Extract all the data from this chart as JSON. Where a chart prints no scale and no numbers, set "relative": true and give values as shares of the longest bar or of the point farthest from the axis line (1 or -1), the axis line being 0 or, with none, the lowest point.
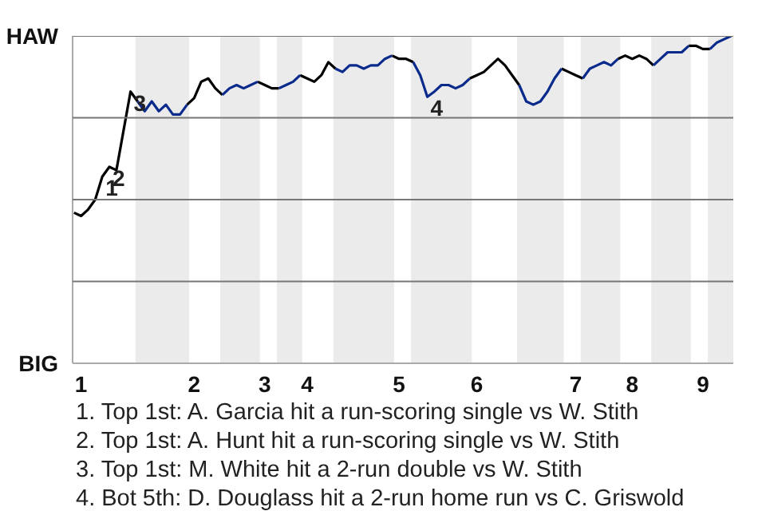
{
  "chart_data": {
    "type": "line",
    "relative": true,
    "categories": [
      null,
      "1",
      null,
      null,
      null,
      null,
      null,
      null,
      null,
      null,
      null,
      null,
      null,
      null,
      null,
      null,
      null,
      "2",
      null,
      null,
      null,
      null,
      null,
      null,
      null,
      null,
      null,
      "3",
      null,
      null,
      null,
      null,
      null,
      "4",
      null,
      null,
      null,
      null,
      null,
      null,
      null,
      null,
      null,
      null,
      null,
      null,
      "5",
      null,
      null,
      null,
      null,
      null,
      null,
      null,
      null,
      null,
      null,
      "6",
      null,
      null,
      null,
      null,
      null,
      null,
      null,
      null,
      null,
      null,
      null,
      null,
      null,
      "7",
      null,
      null,
      null,
      null,
      null,
      null,
      null,
      "8",
      null,
      null,
      null,
      null,
      null,
      null,
      null,
      null,
      null,
      "9",
      null,
      null,
      null,
      null
    ],
    "line_style": "solid",
    "series": [
      {
        "color": "#000000",
        "values": [
          0.46,
          0.45,
          0.47,
          0.5,
          0.57,
          0.6,
          0.59,
          0.71,
          0.83,
          0.8,
          null,
          null,
          null,
          null,
          null,
          null,
          0.79,
          0.81,
          0.86,
          0.87,
          0.84,
          0.82,
          null,
          null,
          null,
          null,
          0.86,
          0.85,
          0.84,
          0.84,
          null,
          null,
          0.88,
          0.87,
          0.86,
          0.88,
          0.92,
          0.9,
          null,
          null,
          null,
          null,
          null,
          null,
          null,
          0.94,
          0.93,
          0.93,
          0.92,
          null,
          null,
          null,
          null,
          null,
          null,
          null,
          0.87,
          0.88,
          0.89,
          0.91,
          0.93,
          0.91,
          0.88,
          0.85,
          null,
          null,
          null,
          null,
          null,
          0.9,
          0.89,
          0.88,
          0.87,
          null,
          null,
          null,
          null,
          0.93,
          0.94,
          0.93,
          0.94,
          0.93,
          0.91,
          null,
          null,
          null,
          null,
          0.97,
          0.97,
          0.96,
          0.96,
          null,
          null,
          null
        ]
      },
      {
        "color": "#0a2a8c",
        "values": [
          null,
          null,
          null,
          null,
          null,
          null,
          null,
          null,
          null,
          0.8,
          0.77,
          0.8,
          0.77,
          0.79,
          0.76,
          0.76,
          0.79,
          null,
          null,
          null,
          null,
          0.82,
          0.84,
          0.85,
          0.84,
          0.85,
          0.86,
          null,
          null,
          0.84,
          0.85,
          0.86,
          0.88,
          null,
          null,
          null,
          null,
          0.9,
          0.89,
          0.91,
          0.91,
          0.9,
          0.91,
          0.91,
          0.93,
          0.94,
          null,
          null,
          0.92,
          0.88,
          0.814,
          0.83,
          0.85,
          0.85,
          0.84,
          0.85,
          0.87,
          null,
          null,
          null,
          null,
          null,
          null,
          0.85,
          0.8,
          0.79,
          0.8,
          0.83,
          0.87,
          0.9,
          null,
          null,
          0.87,
          0.9,
          0.91,
          0.92,
          0.91,
          0.93,
          null,
          null,
          null,
          null,
          0.91,
          0.93,
          0.95,
          0.95,
          0.95,
          0.97,
          null,
          null,
          0.96,
          0.98,
          0.99,
          1.0
        ]
      }
    ],
    "ref_lines": [
      {
        "axis": "y",
        "value": 0.25,
        "color": "#777777"
      },
      {
        "axis": "y",
        "value": 0.5,
        "color": "#777777"
      },
      {
        "axis": "y",
        "value": 0.75,
        "color": "#777777"
      },
      {
        "axis": "y",
        "value": 1,
        "color": "#777777"
      }
    ],
    "annotations": [
      "HAW",
      "BIG",
      {
        "text": "1",
        "y": 0.57
      },
      {
        "text": "2",
        "y": 0.6
      },
      {
        "text": "3",
        "y": 0.83
      },
      {
        "text": "4",
        "y": 0.814
      },
      "1. Top 1st: A. Garcia hit a run-scoring single vs W. Stith",
      "2. Top 1st: A. Hunt hit a run-scoring single vs W. Stith",
      "3. Top 1st: M. White hit a 2-run double vs W. Stith",
      "4. Bot 5th: D. Douglass hit a 2-run home run vs C. Griswold"
    ]
  }
}
